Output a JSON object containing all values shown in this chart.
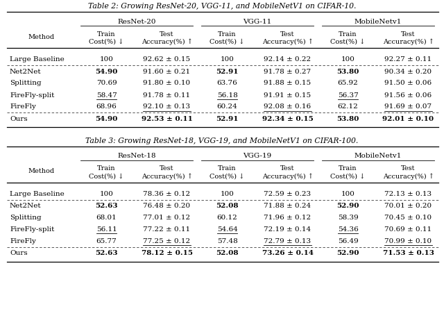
{
  "table2_title": "Table 2: Growing ResNet-20, VGG-11, and MobileNetV1 on CIFAR-10.",
  "table3_title": "Table 3: Growing ResNet-18, VGG-19, and MobileNetV1 on CIFAR-100.",
  "col_groups_t2": [
    "ResNet-20",
    "VGG-11",
    "MobileNetv1"
  ],
  "col_groups_t3": [
    "ResNet-18",
    "VGG-19",
    "MobileNetv1"
  ],
  "table2_rows": [
    {
      "method": "Large Baseline",
      "vals": [
        "100",
        "92.62 ± 0.15",
        "100",
        "92.14 ± 0.22",
        "100",
        "92.27 ± 0.11"
      ],
      "bold": [],
      "underline": [],
      "sep_before": false,
      "sep_after": true,
      "baseline": true
    },
    {
      "method": "Net2Net",
      "vals": [
        "54.90",
        "91.60 ± 0.21",
        "52.91",
        "91.78 ± 0.27",
        "53.80",
        "90.34 ± 0.20"
      ],
      "bold": [
        0,
        2,
        4
      ],
      "underline": [],
      "sep_before": false,
      "sep_after": false,
      "baseline": false
    },
    {
      "method": "Splitting",
      "vals": [
        "70.69",
        "91.80 ± 0.10",
        "63.76",
        "91.88 ± 0.15",
        "65.92",
        "91.50 ± 0.06"
      ],
      "bold": [],
      "underline": [],
      "sep_before": false,
      "sep_after": false,
      "baseline": false
    },
    {
      "method": "FireFly-split",
      "vals": [
        "58.47",
        "91.78 ± 0.11",
        "56.18",
        "91.91 ± 0.15",
        "56.37",
        "91.56 ± 0.06"
      ],
      "bold": [],
      "underline": [
        0,
        2,
        4
      ],
      "sep_before": false,
      "sep_after": false,
      "baseline": false
    },
    {
      "method": "FireFly",
      "vals": [
        "68.96",
        "92.10 ± 0.13",
        "60.24",
        "92.08 ± 0.16",
        "62.12",
        "91.69 ± 0.07"
      ],
      "bold": [],
      "underline": [
        1,
        3,
        5
      ],
      "sep_before": false,
      "sep_after": true,
      "baseline": false
    },
    {
      "method": "Ours",
      "vals": [
        "54.90",
        "92.53 ± 0.11",
        "52.91",
        "92.34 ± 0.15",
        "53.80",
        "92.01 ± 0.10"
      ],
      "bold": [
        0,
        1,
        2,
        3,
        4,
        5
      ],
      "underline": [],
      "sep_before": false,
      "sep_after": false,
      "baseline": false
    }
  ],
  "table3_rows": [
    {
      "method": "Large Baseline",
      "vals": [
        "100",
        "78.36 ± 0.12",
        "100",
        "72.59 ± 0.23",
        "100",
        "72.13 ± 0.13"
      ],
      "bold": [],
      "underline": [],
      "sep_before": false,
      "sep_after": true,
      "baseline": true
    },
    {
      "method": "Net2Net",
      "vals": [
        "52.63",
        "76.48 ± 0.20",
        "52.08",
        "71.88 ± 0.24",
        "52.90",
        "70.01 ± 0.20"
      ],
      "bold": [
        0,
        2,
        4
      ],
      "underline": [],
      "sep_before": false,
      "sep_after": false,
      "baseline": false
    },
    {
      "method": "Splitting",
      "vals": [
        "68.01",
        "77.01 ± 0.12",
        "60.12",
        "71.96 ± 0.12",
        "58.39",
        "70.45 ± 0.10"
      ],
      "bold": [],
      "underline": [],
      "sep_before": false,
      "sep_after": false,
      "baseline": false
    },
    {
      "method": "FireFly-split",
      "vals": [
        "56.11",
        "77.22 ± 0.11",
        "54.64",
        "72.19 ± 0.14",
        "54.36",
        "70.69 ± 0.11"
      ],
      "bold": [],
      "underline": [
        0,
        2,
        4
      ],
      "sep_before": false,
      "sep_after": false,
      "baseline": false
    },
    {
      "method": "FireFly",
      "vals": [
        "65.77",
        "77.25 ± 0.12",
        "57.48",
        "72.79 ± 0.13",
        "56.49",
        "70.99 ± 0.10"
      ],
      "bold": [],
      "underline": [
        1,
        3,
        5
      ],
      "sep_before": false,
      "sep_after": true,
      "baseline": false
    },
    {
      "method": "Ours",
      "vals": [
        "52.63",
        "78.12 ± 0.15",
        "52.08",
        "73.26 ± 0.14",
        "52.90",
        "71.53 ± 0.13"
      ],
      "bold": [
        0,
        1,
        2,
        3,
        4,
        5
      ],
      "underline": [],
      "sep_before": false,
      "sep_after": false,
      "baseline": false
    }
  ],
  "fig_width": 6.4,
  "fig_height": 4.45,
  "dpi": 100
}
